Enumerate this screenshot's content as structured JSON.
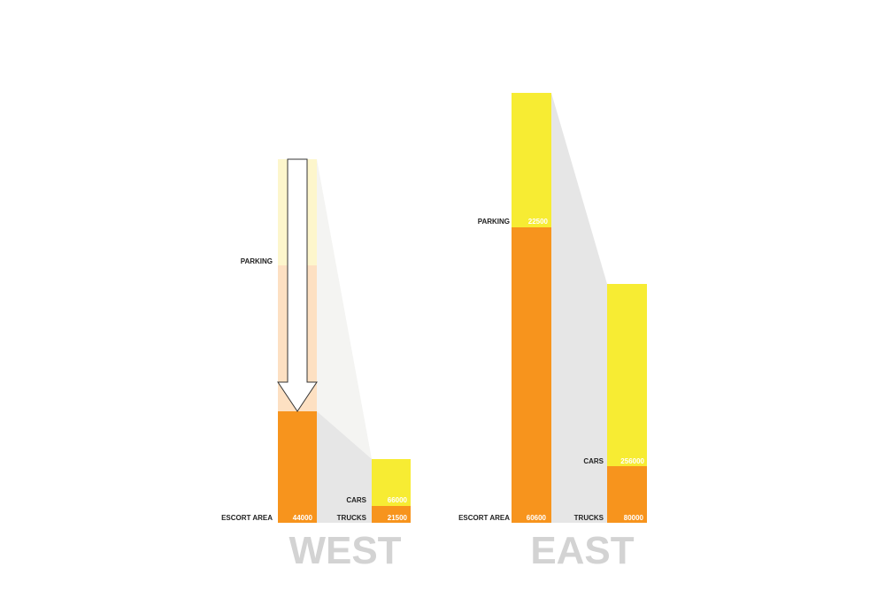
{
  "panels": [
    {
      "title": "WEST",
      "bars": [
        {
          "segments": [
            {
              "label": "PARKING"
            },
            {
              "label": "ESCORT AREA",
              "value": "44000"
            }
          ]
        },
        {
          "segments": [
            {
              "label": "CARS",
              "value": "66000"
            },
            {
              "label": "TRUCKS",
              "value": "21500"
            }
          ]
        }
      ]
    },
    {
      "title": "EAST",
      "bars": [
        {
          "segments": [
            {
              "label": "PARKING",
              "value": "22500"
            },
            {
              "label": "ESCORT AREA",
              "value": "60600"
            }
          ]
        },
        {
          "segments": [
            {
              "label": "CARS",
              "value": "256000"
            },
            {
              "label": "TRUCKS",
              "value": "80000"
            }
          ]
        }
      ]
    }
  ]
}
